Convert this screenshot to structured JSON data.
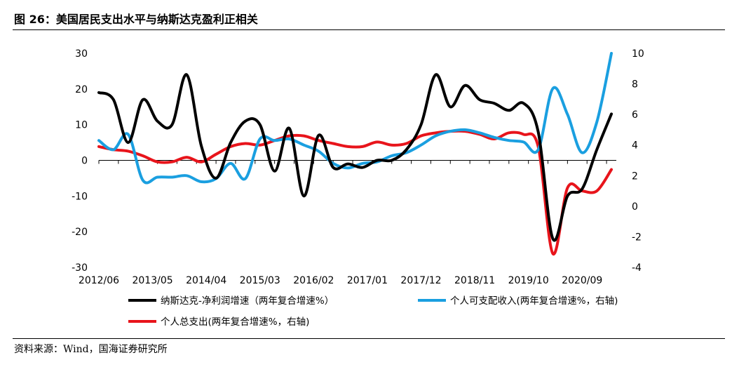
{
  "figure": {
    "title": "图 26：美国居民支出水平与纳斯达克盈利正相关",
    "source": "资料来源：Wind，国海证券研究所"
  },
  "chart_data": {
    "type": "line",
    "x_tick_labels": [
      "2012/06",
      "2013/05",
      "2014/04",
      "2015/03",
      "2016/02",
      "2017/01",
      "2017/12",
      "2018/11",
      "2019/10",
      "2020/09"
    ],
    "x_range": [
      "2012/06",
      "2021/04"
    ],
    "y_left": {
      "range": [
        -30,
        30
      ],
      "ticks": [
        "-30",
        "-20",
        "-10",
        "0",
        "10",
        "20",
        "30"
      ]
    },
    "y_right": {
      "range": [
        -4,
        10
      ],
      "ticks": [
        "-4",
        "-2",
        "0",
        "2",
        "4",
        "6",
        "8",
        "10"
      ]
    },
    "grid": false,
    "legend_position": "bottom",
    "series": [
      {
        "name": "纳斯达克-净利润增速（两年复合增速%）",
        "axis": "left",
        "color": "#000000",
        "points": [
          [
            "2012/06",
            19
          ],
          [
            "2012/09",
            17
          ],
          [
            "2012/12",
            5
          ],
          [
            "2013/03",
            17
          ],
          [
            "2013/06",
            11
          ],
          [
            "2013/09",
            10
          ],
          [
            "2013/12",
            24
          ],
          [
            "2014/03",
            4
          ],
          [
            "2014/06",
            -5
          ],
          [
            "2014/09",
            5
          ],
          [
            "2014/12",
            11
          ],
          [
            "2015/03",
            10
          ],
          [
            "2015/06",
            -3
          ],
          [
            "2015/09",
            9
          ],
          [
            "2015/12",
            -10
          ],
          [
            "2016/03",
            7
          ],
          [
            "2016/06",
            -2
          ],
          [
            "2016/09",
            -1
          ],
          [
            "2016/12",
            -2
          ],
          [
            "2017/03",
            0
          ],
          [
            "2017/06",
            0
          ],
          [
            "2017/09",
            3
          ],
          [
            "2017/12",
            10
          ],
          [
            "2018/03",
            24
          ],
          [
            "2018/06",
            15
          ],
          [
            "2018/09",
            21
          ],
          [
            "2018/12",
            17
          ],
          [
            "2019/03",
            16
          ],
          [
            "2019/06",
            14
          ],
          [
            "2019/09",
            16
          ],
          [
            "2019/12",
            8
          ],
          [
            "2020/03",
            -22
          ],
          [
            "2020/06",
            -10
          ],
          [
            "2020/09",
            -8
          ],
          [
            "2020/12",
            3
          ],
          [
            "2021/03",
            13
          ]
        ]
      },
      {
        "name": "个人可支配收入(两年复合增速%，右轴)",
        "axis": "right",
        "color": "#1a9fe0",
        "points": [
          [
            "2012/06",
            4.3
          ],
          [
            "2012/09",
            3.7
          ],
          [
            "2012/12",
            4.7
          ],
          [
            "2013/03",
            1.7
          ],
          [
            "2013/06",
            1.9
          ],
          [
            "2013/09",
            1.9
          ],
          [
            "2013/12",
            2.0
          ],
          [
            "2014/03",
            1.6
          ],
          [
            "2014/06",
            1.8
          ],
          [
            "2014/09",
            2.8
          ],
          [
            "2014/12",
            1.8
          ],
          [
            "2015/03",
            4.4
          ],
          [
            "2015/06",
            4.3
          ],
          [
            "2015/09",
            4.4
          ],
          [
            "2015/12",
            4.0
          ],
          [
            "2016/03",
            3.6
          ],
          [
            "2016/06",
            2.8
          ],
          [
            "2016/09",
            2.5
          ],
          [
            "2016/12",
            2.8
          ],
          [
            "2017/03",
            2.9
          ],
          [
            "2017/06",
            3.3
          ],
          [
            "2017/09",
            3.5
          ],
          [
            "2017/12",
            4.0
          ],
          [
            "2018/03",
            4.6
          ],
          [
            "2018/06",
            4.9
          ],
          [
            "2018/09",
            5.0
          ],
          [
            "2018/12",
            4.8
          ],
          [
            "2019/03",
            4.5
          ],
          [
            "2019/06",
            4.3
          ],
          [
            "2019/09",
            4.2
          ],
          [
            "2019/12",
            3.7
          ],
          [
            "2020/03",
            7.7
          ],
          [
            "2020/06",
            6.0
          ],
          [
            "2020/09",
            3.5
          ],
          [
            "2020/12",
            5.5
          ],
          [
            "2021/03",
            10.0
          ]
        ]
      },
      {
        "name": "个人总支出(两年复合增速%，右轴)",
        "axis": "right",
        "color": "#e8141b",
        "points": [
          [
            "2012/06",
            3.9
          ],
          [
            "2012/09",
            3.7
          ],
          [
            "2012/12",
            3.6
          ],
          [
            "2013/03",
            3.3
          ],
          [
            "2013/06",
            2.9
          ],
          [
            "2013/09",
            2.9
          ],
          [
            "2013/12",
            3.2
          ],
          [
            "2014/03",
            2.9
          ],
          [
            "2014/06",
            3.4
          ],
          [
            "2014/09",
            3.9
          ],
          [
            "2014/12",
            4.1
          ],
          [
            "2015/03",
            4.0
          ],
          [
            "2015/06",
            4.3
          ],
          [
            "2015/09",
            4.6
          ],
          [
            "2015/12",
            4.6
          ],
          [
            "2016/03",
            4.3
          ],
          [
            "2016/06",
            4.1
          ],
          [
            "2016/09",
            3.9
          ],
          [
            "2016/12",
            3.9
          ],
          [
            "2017/03",
            4.2
          ],
          [
            "2017/06",
            4.0
          ],
          [
            "2017/09",
            4.1
          ],
          [
            "2017/12",
            4.6
          ],
          [
            "2018/03",
            4.8
          ],
          [
            "2018/06",
            4.9
          ],
          [
            "2018/09",
            4.9
          ],
          [
            "2018/12",
            4.7
          ],
          [
            "2019/03",
            4.4
          ],
          [
            "2019/06",
            4.8
          ],
          [
            "2019/09",
            4.7
          ],
          [
            "2019/12",
            3.9
          ],
          [
            "2020/03",
            -3.1
          ],
          [
            "2020/06",
            1.2
          ],
          [
            "2020/09",
            1.0
          ],
          [
            "2020/12",
            1.0
          ],
          [
            "2021/03",
            2.4
          ]
        ]
      }
    ]
  }
}
